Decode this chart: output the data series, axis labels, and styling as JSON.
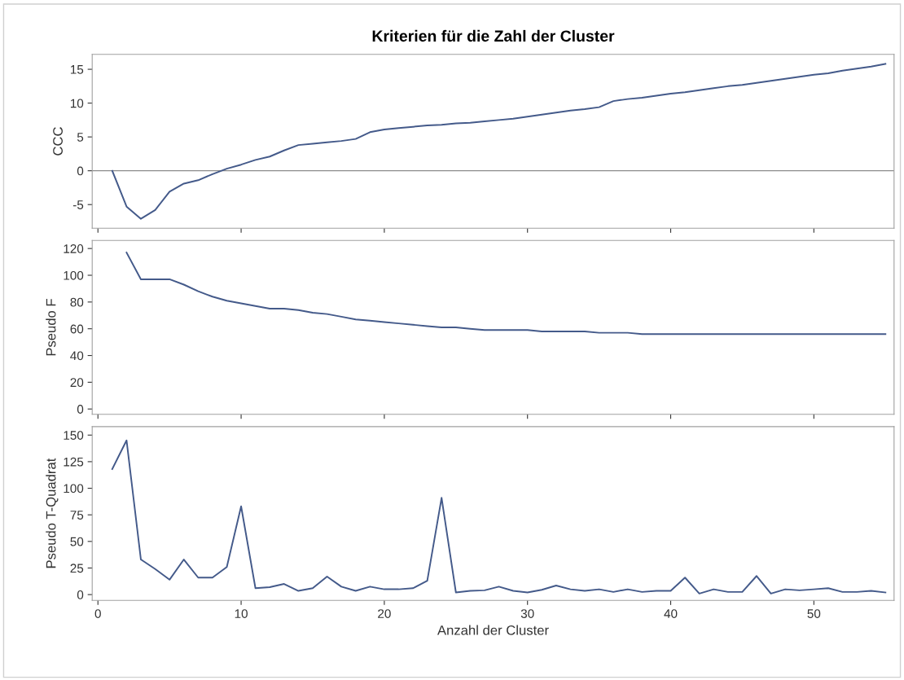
{
  "chart_data": [
    {
      "type": "line",
      "title": "Kriterien für die Zahl der Cluster",
      "ylabel": "CCC",
      "tick_labels": "y",
      "grid": false,
      "x": [
        1,
        2,
        3,
        4,
        5,
        6,
        7,
        8,
        9,
        10,
        11,
        12,
        13,
        14,
        15,
        16,
        17,
        18,
        19,
        20,
        21,
        22,
        23,
        24,
        25,
        26,
        27,
        28,
        29,
        30,
        31,
        32,
        33,
        34,
        35,
        36,
        37,
        38,
        39,
        40,
        41,
        42,
        43,
        44,
        45,
        46,
        47,
        48,
        49,
        50,
        51,
        52,
        53,
        54,
        55
      ],
      "xlim": [
        -0.4,
        55.6
      ],
      "xticks": [
        0,
        10,
        20,
        30,
        40,
        50
      ],
      "ylim": [
        -8.5,
        17.2
      ],
      "yticks": [
        -5,
        0,
        5,
        10,
        15
      ],
      "ref_lines": [
        {
          "axis": "y",
          "value": 0,
          "color": "#8c8c8c"
        }
      ],
      "series": [
        {
          "color": "#445a8a",
          "values": [
            0,
            -5.3,
            -7.1,
            -5.8,
            -3.1,
            -1.9,
            -1.4,
            -0.5,
            0.3,
            0.9,
            1.6,
            2.1,
            3.0,
            3.8,
            4.0,
            4.2,
            4.4,
            4.7,
            5.7,
            6.1,
            6.3,
            6.5,
            6.7,
            6.8,
            7.0,
            7.1,
            7.3,
            7.5,
            7.7,
            8.0,
            8.3,
            8.6,
            8.9,
            9.1,
            9.4,
            10.3,
            10.6,
            10.8,
            11.1,
            11.4,
            11.6,
            11.9,
            12.2,
            12.5,
            12.7,
            13.0,
            13.3,
            13.6,
            13.9,
            14.2,
            14.4,
            14.8,
            15.1,
            15.4,
            15.8
          ]
        }
      ]
    },
    {
      "type": "line",
      "ylabel": "Pseudo F",
      "tick_labels": "y",
      "grid": false,
      "x": [
        2,
        3,
        4,
        5,
        6,
        7,
        8,
        9,
        10,
        11,
        12,
        13,
        14,
        15,
        16,
        17,
        18,
        19,
        20,
        21,
        22,
        23,
        24,
        25,
        26,
        27,
        28,
        29,
        30,
        31,
        32,
        33,
        34,
        35,
        36,
        37,
        38,
        39,
        40,
        41,
        42,
        43,
        44,
        45,
        46,
        47,
        48,
        49,
        50,
        51,
        52,
        53,
        54,
        55
      ],
      "xlim": [
        -0.4,
        55.6
      ],
      "xticks": [
        0,
        10,
        20,
        30,
        40,
        50
      ],
      "ylim": [
        -4,
        126
      ],
      "yticks": [
        0,
        20,
        40,
        60,
        80,
        100,
        120
      ],
      "series": [
        {
          "color": "#445a8a",
          "values": [
            117,
            97,
            97,
            97,
            93,
            88,
            84,
            81,
            79,
            77,
            75,
            75,
            74,
            72,
            71,
            69,
            67,
            66,
            65,
            64,
            63,
            62,
            61,
            61,
            60,
            59,
            59,
            59,
            59,
            58,
            58,
            58,
            58,
            57,
            57,
            57,
            56,
            56,
            56,
            56,
            56,
            56,
            56,
            56,
            56,
            56,
            56,
            56,
            56,
            56,
            56,
            56,
            56,
            56
          ]
        }
      ]
    },
    {
      "type": "line",
      "ylabel": "Pseudo T-Quadrat",
      "xlabel": "Anzahl der Cluster",
      "grid": false,
      "x": [
        1,
        2,
        3,
        4,
        5,
        6,
        7,
        8,
        9,
        10,
        11,
        12,
        13,
        14,
        15,
        16,
        17,
        18,
        19,
        20,
        21,
        22,
        23,
        24,
        25,
        26,
        27,
        28,
        29,
        30,
        31,
        32,
        33,
        34,
        35,
        36,
        37,
        38,
        39,
        40,
        41,
        42,
        43,
        44,
        45,
        46,
        47,
        48,
        49,
        50,
        51,
        52,
        53,
        54,
        55
      ],
      "xlim": [
        -0.4,
        55.6
      ],
      "xticks": [
        0,
        10,
        20,
        30,
        40,
        50
      ],
      "ylim": [
        -5.5,
        158
      ],
      "yticks": [
        0,
        25,
        50,
        75,
        100,
        125,
        150
      ],
      "series": [
        {
          "color": "#445a8a",
          "values": [
            118,
            145,
            33,
            24,
            14,
            33,
            16,
            16,
            26,
            83,
            6,
            7,
            10,
            3.5,
            6,
            17,
            7.5,
            3.5,
            7.5,
            5,
            5,
            6,
            13,
            91,
            2,
            3.5,
            4,
            7.5,
            3.5,
            2,
            4.5,
            8.5,
            5,
            3.5,
            5,
            2.5,
            5,
            2.5,
            3.5,
            3.5,
            16,
            1,
            5,
            2.5,
            2.5,
            17.5,
            1,
            5,
            4,
            5,
            6,
            2.5,
            2.5,
            3.5,
            2
          ]
        }
      ]
    }
  ]
}
